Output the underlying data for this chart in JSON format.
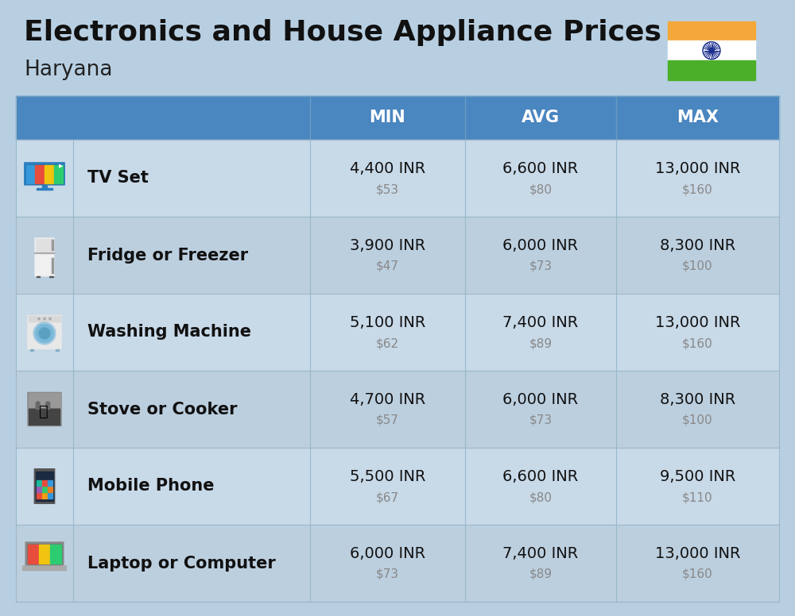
{
  "title": "Electronics and House Appliance Prices",
  "subtitle": "Haryana",
  "bg_color": "#b8cfe2",
  "header_bg": "#4a86c0",
  "header_text_color": "#ffffff",
  "row_bg_even": "#c8d9e8",
  "row_bg_odd": "#bccfdf",
  "col_divider_color": "#9ab8cc",
  "row_divider_color": "#9ab8cc",
  "columns": [
    "MIN",
    "AVG",
    "MAX"
  ],
  "rows": [
    {
      "name": "TV Set",
      "min_inr": "4,400 INR",
      "min_usd": "$53",
      "avg_inr": "6,600 INR",
      "avg_usd": "$80",
      "max_inr": "13,000 INR",
      "max_usd": "$160"
    },
    {
      "name": "Fridge or Freezer",
      "min_inr": "3,900 INR",
      "min_usd": "$47",
      "avg_inr": "6,000 INR",
      "avg_usd": "$73",
      "max_inr": "8,300 INR",
      "max_usd": "$100"
    },
    {
      "name": "Washing Machine",
      "min_inr": "5,100 INR",
      "min_usd": "$62",
      "avg_inr": "7,400 INR",
      "avg_usd": "$89",
      "max_inr": "13,000 INR",
      "max_usd": "$160"
    },
    {
      "name": "Stove or Cooker",
      "min_inr": "4,700 INR",
      "min_usd": "$57",
      "avg_inr": "6,000 INR",
      "avg_usd": "$73",
      "max_inr": "8,300 INR",
      "max_usd": "$100"
    },
    {
      "name": "Mobile Phone",
      "min_inr": "5,500 INR",
      "min_usd": "$67",
      "avg_inr": "6,600 INR",
      "avg_usd": "$80",
      "max_inr": "9,500 INR",
      "max_usd": "$110"
    },
    {
      "name": "Laptop or Computer",
      "min_inr": "6,000 INR",
      "min_usd": "$73",
      "avg_inr": "7,400 INR",
      "avg_usd": "$89",
      "max_inr": "13,000 INR",
      "max_usd": "$160"
    }
  ],
  "title_fontsize": 26,
  "subtitle_fontsize": 19,
  "header_fontsize": 15,
  "row_name_fontsize": 15,
  "value_fontsize": 14,
  "usd_fontsize": 11,
  "flag_orange": "#F4A83A",
  "flag_white": "#FFFFFF",
  "flag_green": "#4BAF2A",
  "chakra_color": "#1A2F8F"
}
